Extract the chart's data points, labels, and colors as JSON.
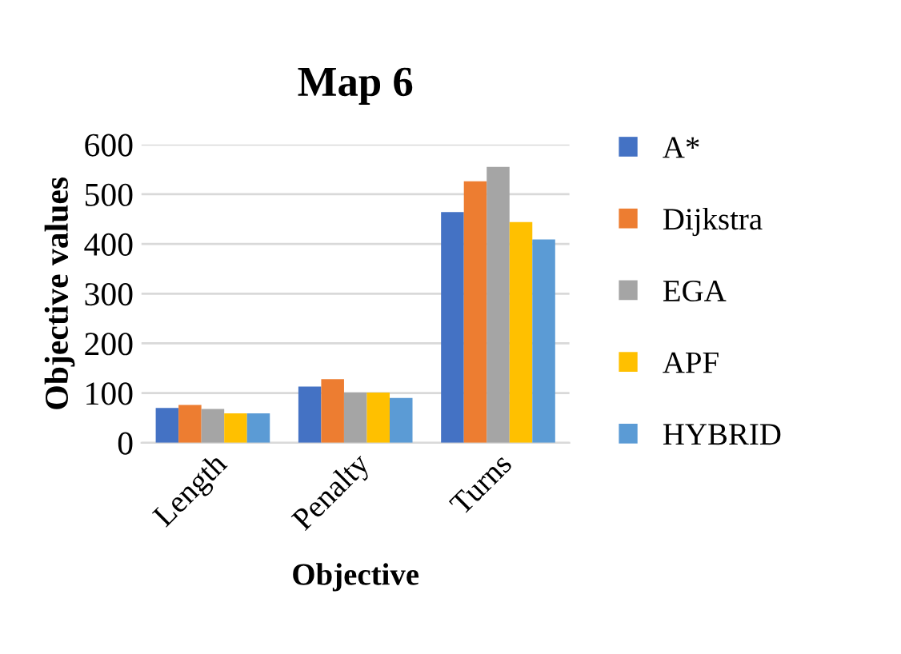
{
  "chart_data": {
    "type": "bar",
    "title": "Map 6",
    "xlabel": "Objective",
    "ylabel": "Objective values",
    "categories": [
      "Length",
      "Penalty",
      "Turns"
    ],
    "series": [
      {
        "name": "A*",
        "color": "#4472c4",
        "values": [
          70,
          113,
          464
        ]
      },
      {
        "name": "Dijkstra",
        "color": "#ed7d31",
        "values": [
          76,
          128,
          526
        ]
      },
      {
        "name": "EGA",
        "color": "#a5a5a5",
        "values": [
          68,
          101,
          555
        ]
      },
      {
        "name": "APF",
        "color": "#ffc000",
        "values": [
          59,
          101,
          444
        ]
      },
      {
        "name": "HYBRID",
        "color": "#5b9bd5",
        "values": [
          59,
          90,
          409
        ]
      }
    ],
    "ylim": [
      0,
      600
    ],
    "yticks": [
      0,
      100,
      200,
      300,
      400,
      500,
      600
    ],
    "grid": "y",
    "legend": "right"
  }
}
